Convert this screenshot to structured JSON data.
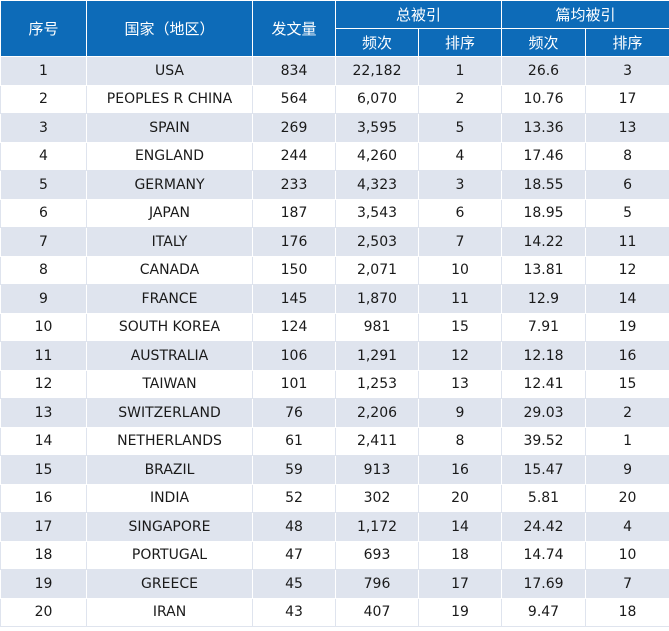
{
  "header": {
    "rank": "序号",
    "country": "国家（地区）",
    "papers": "发文量",
    "total_citations": "总被引",
    "avg_citations": "篇均被引",
    "sub_freq_1": "频次",
    "sub_rank_1": "排序",
    "sub_freq_2": "频次",
    "sub_rank_2": "排序"
  },
  "rows": [
    {
      "rank": "1",
      "country": "USA",
      "papers": "834",
      "cites": "22,182",
      "cites_rank": "1",
      "avg": "26.6",
      "avg_rank": "3"
    },
    {
      "rank": "2",
      "country": "PEOPLES R CHINA",
      "papers": "564",
      "cites": "6,070",
      "cites_rank": "2",
      "avg": "10.76",
      "avg_rank": "17"
    },
    {
      "rank": "3",
      "country": "SPAIN",
      "papers": "269",
      "cites": "3,595",
      "cites_rank": "5",
      "avg": "13.36",
      "avg_rank": "13"
    },
    {
      "rank": "4",
      "country": "ENGLAND",
      "papers": "244",
      "cites": "4,260",
      "cites_rank": "4",
      "avg": "17.46",
      "avg_rank": "8"
    },
    {
      "rank": "5",
      "country": "GERMANY",
      "papers": "233",
      "cites": "4,323",
      "cites_rank": "3",
      "avg": "18.55",
      "avg_rank": "6"
    },
    {
      "rank": "6",
      "country": "JAPAN",
      "papers": "187",
      "cites": "3,543",
      "cites_rank": "6",
      "avg": "18.95",
      "avg_rank": "5"
    },
    {
      "rank": "7",
      "country": "ITALY",
      "papers": "176",
      "cites": "2,503",
      "cites_rank": "7",
      "avg": "14.22",
      "avg_rank": "11"
    },
    {
      "rank": "8",
      "country": "CANADA",
      "papers": "150",
      "cites": "2,071",
      "cites_rank": "10",
      "avg": "13.81",
      "avg_rank": "12"
    },
    {
      "rank": "9",
      "country": "FRANCE",
      "papers": "145",
      "cites": "1,870",
      "cites_rank": "11",
      "avg": "12.9",
      "avg_rank": "14"
    },
    {
      "rank": "10",
      "country": "SOUTH KOREA",
      "papers": "124",
      "cites": "981",
      "cites_rank": "15",
      "avg": "7.91",
      "avg_rank": "19"
    },
    {
      "rank": "11",
      "country": "AUSTRALIA",
      "papers": "106",
      "cites": "1,291",
      "cites_rank": "12",
      "avg": "12.18",
      "avg_rank": "16"
    },
    {
      "rank": "12",
      "country": "TAIWAN",
      "papers": "101",
      "cites": "1,253",
      "cites_rank": "13",
      "avg": "12.41",
      "avg_rank": "15"
    },
    {
      "rank": "13",
      "country": "SWITZERLAND",
      "papers": "76",
      "cites": "2,206",
      "cites_rank": "9",
      "avg": "29.03",
      "avg_rank": "2"
    },
    {
      "rank": "14",
      "country": "NETHERLANDS",
      "papers": "61",
      "cites": "2,411",
      "cites_rank": "8",
      "avg": "39.52",
      "avg_rank": "1"
    },
    {
      "rank": "15",
      "country": "BRAZIL",
      "papers": "59",
      "cites": "913",
      "cites_rank": "16",
      "avg": "15.47",
      "avg_rank": "9"
    },
    {
      "rank": "16",
      "country": "INDIA",
      "papers": "52",
      "cites": "302",
      "cites_rank": "20",
      "avg": "5.81",
      "avg_rank": "20"
    },
    {
      "rank": "17",
      "country": "SINGAPORE",
      "papers": "48",
      "cites": "1,172",
      "cites_rank": "14",
      "avg": "24.42",
      "avg_rank": "4"
    },
    {
      "rank": "18",
      "country": "PORTUGAL",
      "papers": "47",
      "cites": "693",
      "cites_rank": "18",
      "avg": "14.74",
      "avg_rank": "10"
    },
    {
      "rank": "19",
      "country": "GREECE",
      "papers": "45",
      "cites": "796",
      "cites_rank": "17",
      "avg": "17.69",
      "avg_rank": "7"
    },
    {
      "rank": "20",
      "country": "IRAN",
      "papers": "43",
      "cites": "407",
      "cites_rank": "19",
      "avg": "9.47",
      "avg_rank": "18"
    }
  ],
  "colors": {
    "header_bg": "#0d6bb8",
    "stripe_bg": "#dfe4ee"
  }
}
